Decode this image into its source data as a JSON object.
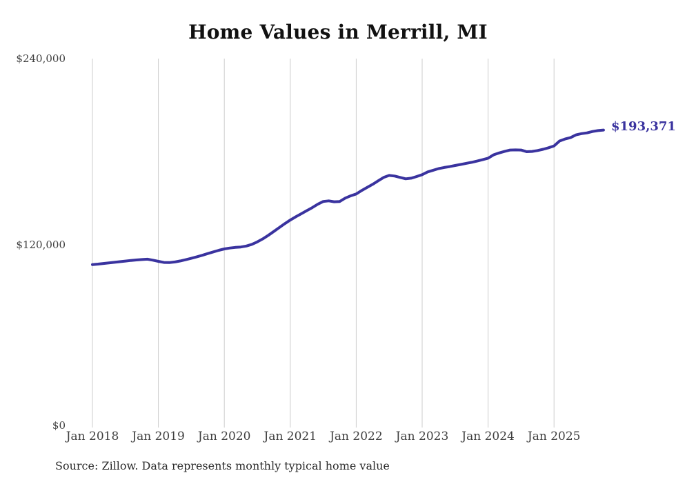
{
  "page": {
    "source_note": "Source: Zillow. Data represents monthly typical home value"
  },
  "chart_data": {
    "type": "line",
    "title": "Home Values in Merrill, MI",
    "xlabel": "",
    "ylabel": "",
    "x_unit": "month",
    "x_start": "Jan 2018",
    "x_end": "Oct 2025",
    "x_tick_labels": [
      "Jan 2018",
      "Jan 2019",
      "Jan 2020",
      "Jan 2021",
      "Jan 2022",
      "Jan 2023",
      "Jan 2024",
      "Jan 2025"
    ],
    "y_tick_labels": [
      "$0",
      "$120,000",
      "$240,000"
    ],
    "ylim": [
      0,
      240000
    ],
    "grid": "vertical-only",
    "legend": "none",
    "grid_color": "#cccccc",
    "text_color": "#3f3f3f",
    "title_color": "#111111",
    "series": [
      {
        "name": "Monthly typical home value",
        "color": "#3a339f",
        "end_label": "$193,371",
        "end_value": 193371,
        "values": [
          105500,
          105800,
          106200,
          106600,
          107000,
          107400,
          107800,
          108200,
          108500,
          108800,
          109000,
          108400,
          107600,
          106900,
          106800,
          107200,
          107900,
          108700,
          109600,
          110600,
          111600,
          112700,
          113800,
          114800,
          115700,
          116300,
          116700,
          117000,
          117600,
          118700,
          120300,
          122300,
          124600,
          127100,
          129700,
          132200,
          134600,
          136700,
          138700,
          140700,
          142700,
          144900,
          146700,
          147100,
          146500,
          146700,
          148900,
          150400,
          151600,
          153900,
          155900,
          157900,
          160200,
          162400,
          163700,
          163300,
          162400,
          161500,
          161900,
          163000,
          164200,
          166000,
          167100,
          168200,
          168900,
          169500,
          170200,
          170900,
          171600,
          172300,
          173100,
          174000,
          175000,
          177200,
          178400,
          179400,
          180300,
          180400,
          180300,
          179200,
          179400,
          180000,
          180800,
          181800,
          183000,
          186200,
          187500,
          188400,
          190200,
          191000,
          191500,
          192400,
          193000,
          193371
        ]
      }
    ]
  }
}
